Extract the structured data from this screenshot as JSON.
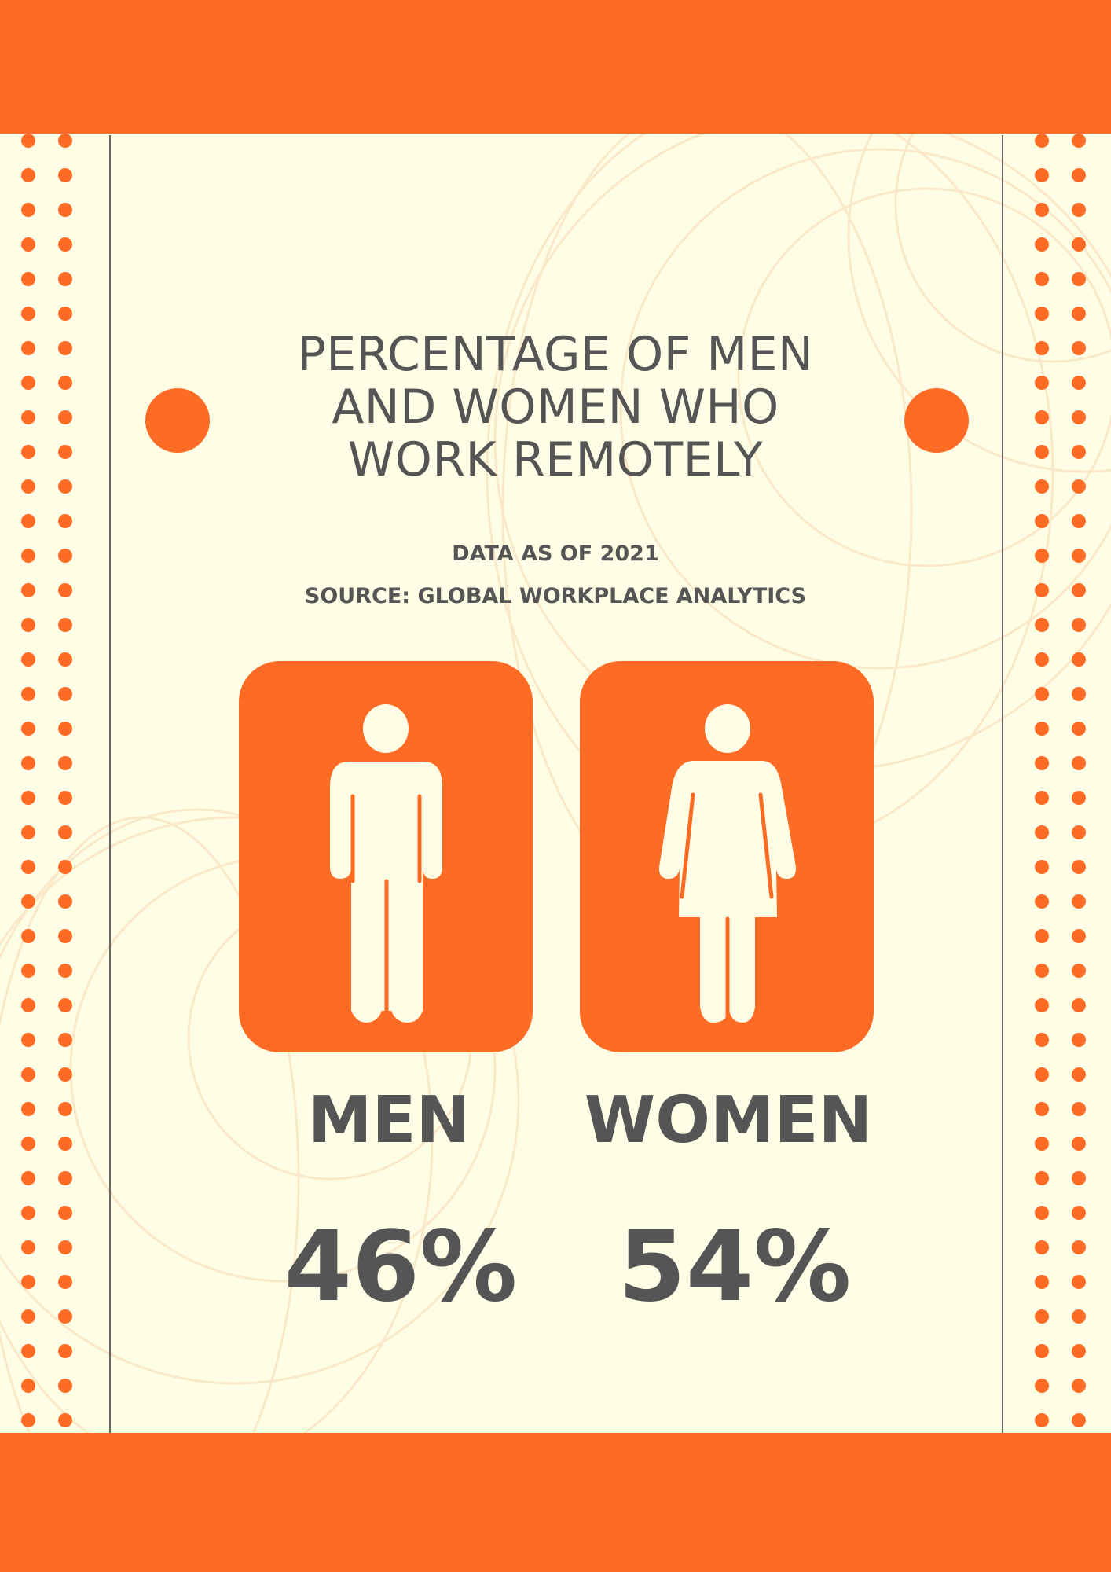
{
  "title_lines": [
    "PERCENTAGE OF MEN",
    "AND WOMEN WHO",
    "WORK REMOTELY"
  ],
  "subtitle_lines": [
    "DATA AS OF 2021",
    "SOURCE: GLOBAL WORKPLACE ANALYTICS"
  ],
  "men": {
    "label": "MEN",
    "percent": "46%",
    "icon": "male-figure-icon"
  },
  "women": {
    "label": "WOMEN",
    "percent": "54%",
    "icon": "female-figure-icon"
  },
  "colors": {
    "accent": "#fe6b24",
    "background": "#fefde5",
    "text": "#555555",
    "pattern": "#fbe6c8"
  }
}
